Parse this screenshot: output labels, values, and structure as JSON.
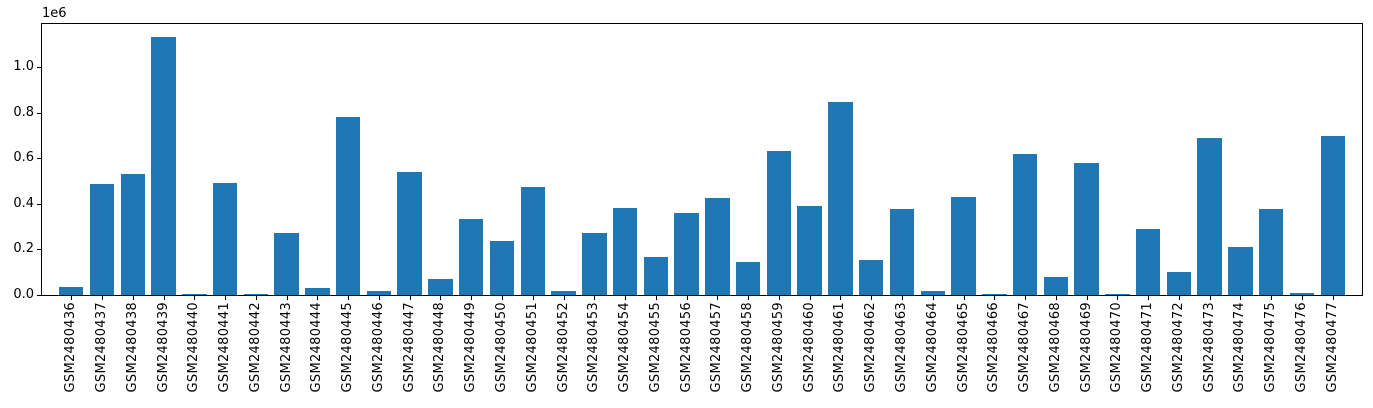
{
  "chart_data": {
    "type": "bar",
    "title": "",
    "xlabel": "",
    "ylabel": "",
    "offset_text": "1e6",
    "bar_color": "#1f77b4",
    "grid": false,
    "ylim": [
      0,
      1190000
    ],
    "yticks": [
      0,
      200000,
      400000,
      600000,
      800000,
      1000000
    ],
    "ytick_labels": [
      "0.0",
      "0.2",
      "0.4",
      "0.6",
      "0.8",
      "1.0"
    ],
    "categories": [
      "GSM2480436",
      "GSM2480437",
      "GSM2480438",
      "GSM2480439",
      "GSM2480440",
      "GSM2480441",
      "GSM2480442",
      "GSM2480443",
      "GSM2480444",
      "GSM2480445",
      "GSM2480446",
      "GSM2480447",
      "GSM2480448",
      "GSM2480449",
      "GSM2480450",
      "GSM2480451",
      "GSM2480452",
      "GSM2480453",
      "GSM2480454",
      "GSM2480455",
      "GSM2480456",
      "GSM2480457",
      "GSM2480458",
      "GSM2480459",
      "GSM2480460",
      "GSM2480461",
      "GSM2480462",
      "GSM2480463",
      "GSM2480464",
      "GSM2480465",
      "GSM2480466",
      "GSM2480467",
      "GSM2480468",
      "GSM2480469",
      "GSM2480470",
      "GSM2480471",
      "GSM2480472",
      "GSM2480473",
      "GSM2480474",
      "GSM2480475",
      "GSM2480476",
      "GSM2480477"
    ],
    "values": [
      35000,
      488000,
      531000,
      1134000,
      6000,
      491000,
      5000,
      271000,
      31000,
      782000,
      18000,
      540000,
      69000,
      334000,
      238000,
      475000,
      18000,
      271000,
      382000,
      166000,
      358000,
      427000,
      144000,
      633000,
      392000,
      849000,
      154000,
      377000,
      19000,
      430000,
      4000,
      620000,
      81000,
      581000,
      3000,
      288000,
      100000,
      691000,
      209000,
      376000,
      8000,
      698000
    ]
  }
}
